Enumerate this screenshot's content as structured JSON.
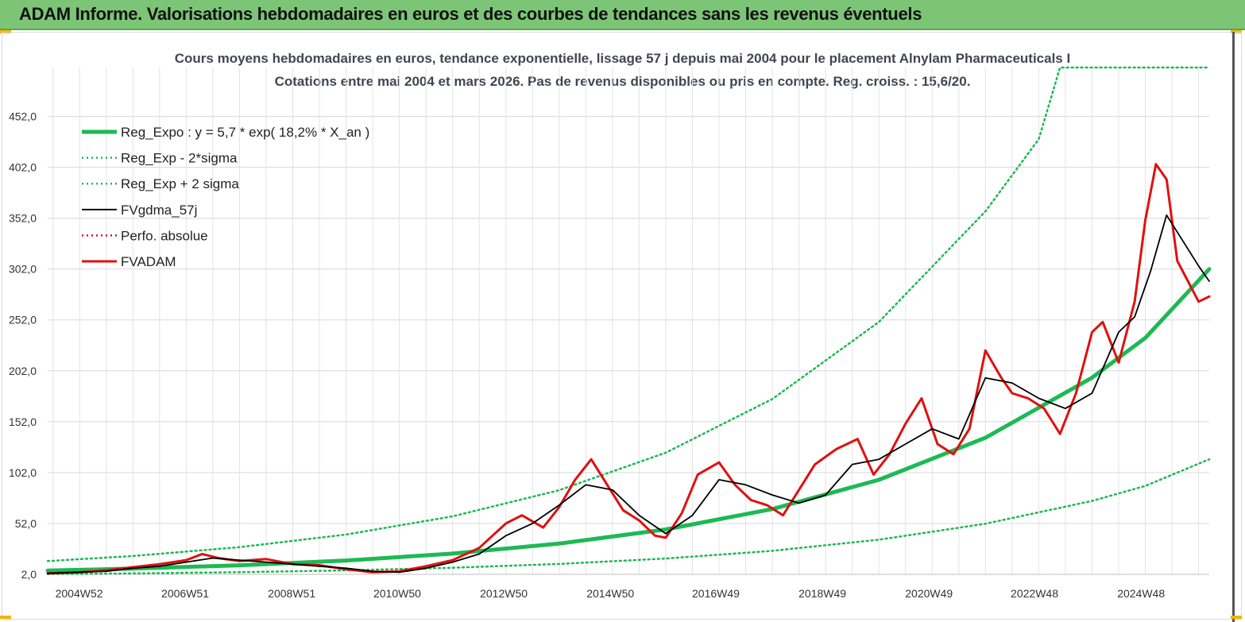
{
  "banner": {
    "title": "ADAM Informe. Valorisations hebdomadaires en euros et des courbes de tendances sans les revenus éventuels",
    "color": "#7cc576"
  },
  "chart_data": {
    "type": "line",
    "title": "Cours moyens hebdomadaires en euros, tendance exponentielle, lissage 57 j depuis mai 2004 pour le placement Alnylam Pharmaceuticals I",
    "subtitle": "Cotations entre mai 2004 et mars 2026. Pas de revenus disponibles ou pris en compte. Reg. croiss. : 15,6/20.",
    "xlabel": "",
    "ylabel": "",
    "ylim": [
      2,
      500
    ],
    "y_ticks": [
      "2,0",
      "52,0",
      "102,0",
      "152,0",
      "202,0",
      "252,0",
      "302,0",
      "352,0",
      "402,0",
      "452,0"
    ],
    "x_range": [
      2004.4,
      2026.2
    ],
    "x_ticks": [
      {
        "label": "2004W52",
        "x": 2004.99
      },
      {
        "label": "2006W51",
        "x": 2006.98
      },
      {
        "label": "2008W51",
        "x": 2008.98
      },
      {
        "label": "2010W50",
        "x": 2010.96
      },
      {
        "label": "2012W50",
        "x": 2012.96
      },
      {
        "label": "2014W50",
        "x": 2014.96
      },
      {
        "label": "2016W49",
        "x": 2016.94
      },
      {
        "label": "2018W49",
        "x": 2018.94
      },
      {
        "label": "2020W49",
        "x": 2020.94
      },
      {
        "label": "2022W48",
        "x": 2022.92
      },
      {
        "label": "2024W48",
        "x": 2024.92
      }
    ],
    "grid": true,
    "legend_position": "top-left",
    "series": [
      {
        "name": "Reg_Expo : y = 5,7 * exp( 18,2% *  X_an )",
        "color": "#1db954",
        "style": "solid-thick",
        "x": [
          2004.4,
          2006.0,
          2008.0,
          2010.0,
          2012.0,
          2014.0,
          2016.0,
          2018.0,
          2020.0,
          2022.0,
          2024.0,
          2025.0,
          2026.2
        ],
        "y": [
          5.7,
          7.6,
          10.9,
          15.6,
          22.4,
          32.2,
          46.1,
          66.2,
          94.9,
          136.2,
          195.3,
          234.3,
          302.0
        ]
      },
      {
        "name": "Reg_Exp - 2*sigma",
        "color": "#1db954",
        "style": "dotted",
        "x": [
          2004.4,
          2006.0,
          2008.0,
          2010.0,
          2012.0,
          2014.0,
          2016.0,
          2018.0,
          2020.0,
          2022.0,
          2024.0,
          2025.0,
          2026.2
        ],
        "y": [
          2.2,
          2.9,
          4.1,
          5.9,
          8.5,
          12.2,
          17.5,
          25.1,
          36.0,
          51.7,
          74.1,
          88.9,
          115.0
        ]
      },
      {
        "name": "Reg_Exp + 2 sigma",
        "color": "#1db954",
        "style": "dotted",
        "x": [
          2004.4,
          2006.0,
          2008.0,
          2010.0,
          2012.0,
          2014.0,
          2016.0,
          2018.0,
          2020.0,
          2022.0,
          2023.0,
          2023.4,
          2026.2
        ],
        "y": [
          15.0,
          20.0,
          28.7,
          41.1,
          59.0,
          84.7,
          121.5,
          174.3,
          250.0,
          358.7,
          429.6,
          500.0,
          500.0
        ]
      },
      {
        "name": "FVgdma_57j",
        "color": "#000000",
        "style": "solid",
        "x": [
          2004.4,
          2005.0,
          2005.5,
          2006.0,
          2006.5,
          2007.0,
          2007.5,
          2008.0,
          2008.5,
          2009.0,
          2009.5,
          2010.0,
          2010.5,
          2011.0,
          2011.5,
          2012.0,
          2012.5,
          2013.0,
          2013.5,
          2014.0,
          2014.5,
          2015.0,
          2015.5,
          2016.0,
          2016.5,
          2017.0,
          2017.5,
          2018.0,
          2018.5,
          2019.0,
          2019.5,
          2020.0,
          2020.5,
          2021.0,
          2021.5,
          2022.0,
          2022.5,
          2023.0,
          2023.5,
          2024.0,
          2024.5,
          2024.8,
          2025.1,
          2025.4,
          2025.7,
          2026.0,
          2026.2
        ],
        "y": [
          3,
          4,
          5,
          8,
          10,
          14,
          18,
          16,
          14,
          12,
          10,
          8,
          5,
          4,
          8,
          14,
          22,
          40,
          52,
          70,
          90,
          85,
          60,
          42,
          60,
          95,
          90,
          80,
          72,
          80,
          110,
          115,
          130,
          145,
          135,
          195,
          190,
          175,
          165,
          180,
          240,
          255,
          300,
          355,
          330,
          305,
          290
        ]
      },
      {
        "name": "Perfo. absolue",
        "color": "#e01010",
        "style": "dotted",
        "x": [],
        "y": []
      },
      {
        "name": "FVADAM",
        "color": "#e01010",
        "style": "solid-thick",
        "x": [
          2004.4,
          2005.0,
          2005.5,
          2006.0,
          2006.5,
          2007.0,
          2007.3,
          2007.6,
          2008.0,
          2008.5,
          2009.0,
          2009.5,
          2010.0,
          2010.5,
          2011.0,
          2011.5,
          2012.0,
          2012.5,
          2013.0,
          2013.3,
          2013.7,
          2014.0,
          2014.3,
          2014.6,
          2014.9,
          2015.2,
          2015.5,
          2015.8,
          2016.0,
          2016.3,
          2016.6,
          2017.0,
          2017.3,
          2017.6,
          2017.9,
          2018.2,
          2018.5,
          2018.8,
          2019.2,
          2019.6,
          2019.9,
          2020.2,
          2020.5,
          2020.8,
          2021.1,
          2021.4,
          2021.7,
          2022.0,
          2022.3,
          2022.5,
          2022.8,
          2023.1,
          2023.4,
          2023.7,
          2024.0,
          2024.2,
          2024.5,
          2024.8,
          2025.0,
          2025.2,
          2025.4,
          2025.6,
          2025.8,
          2026.0,
          2026.2
        ],
        "y": [
          3,
          4,
          6,
          9,
          12,
          16,
          22,
          18,
          15,
          17,
          12,
          11,
          7,
          4,
          5,
          10,
          16,
          28,
          52,
          60,
          48,
          68,
          95,
          115,
          90,
          65,
          55,
          40,
          38,
          62,
          100,
          112,
          90,
          75,
          70,
          60,
          85,
          110,
          125,
          135,
          100,
          120,
          150,
          175,
          130,
          120,
          145,
          222,
          195,
          180,
          175,
          165,
          140,
          180,
          240,
          250,
          210,
          270,
          350,
          405,
          390,
          310,
          290,
          270,
          275
        ]
      }
    ]
  }
}
